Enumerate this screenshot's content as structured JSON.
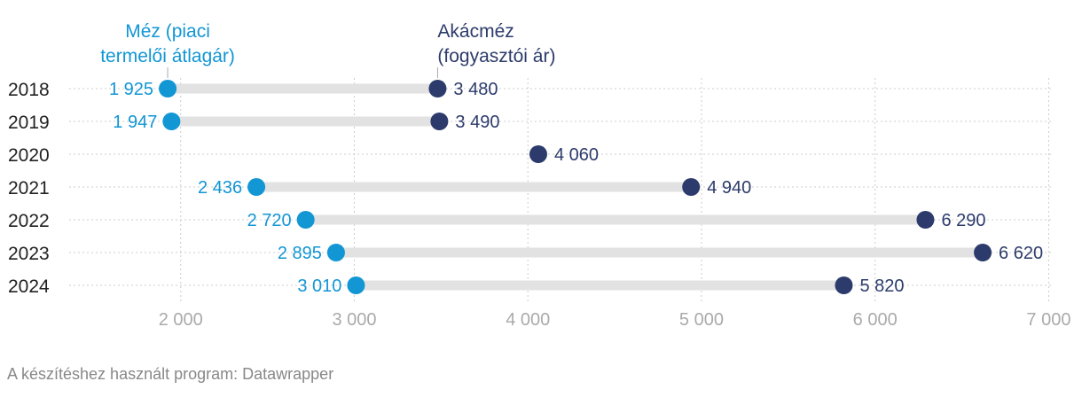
{
  "chart_data": {
    "type": "dumbbell",
    "series": [
      {
        "name": "Méz (piaci termelői átlagár)",
        "label_lines": [
          "Méz (piaci",
          "termelői átlagár)"
        ],
        "color": "#1296d4"
      },
      {
        "name": "Akácméz (fogyasztói ár)",
        "label_lines": [
          "Akácméz",
          "(fogyasztói ár)"
        ],
        "color": "#2c3b6b"
      }
    ],
    "rows": [
      {
        "year": "2018",
        "low": 1925,
        "low_label": "1 925",
        "high": 3480,
        "high_label": "3 480"
      },
      {
        "year": "2019",
        "low": 1947,
        "low_label": "1 947",
        "high": 3490,
        "high_label": "3 490"
      },
      {
        "year": "2020",
        "low": null,
        "low_label": "",
        "high": 4060,
        "high_label": "4 060"
      },
      {
        "year": "2021",
        "low": 2436,
        "low_label": "2 436",
        "high": 4940,
        "high_label": "4 940"
      },
      {
        "year": "2022",
        "low": 2720,
        "low_label": "2 720",
        "high": 6290,
        "high_label": "6 290"
      },
      {
        "year": "2023",
        "low": 2895,
        "low_label": "2 895",
        "high": 6620,
        "high_label": "6 620"
      },
      {
        "year": "2024",
        "low": 3010,
        "low_label": "3 010",
        "high": 5820,
        "high_label": "5 820"
      }
    ],
    "x_ticks": [
      2000,
      3000,
      4000,
      5000,
      6000,
      7000
    ],
    "x_tick_labels": [
      "2 000",
      "3 000",
      "4 000",
      "5 000",
      "6 000",
      "7 000"
    ],
    "xlim": [
      1470,
      7100
    ],
    "grid": true,
    "track_color": "#e2e2e2",
    "grid_color": "#cccccc",
    "tick_label_color": "#aaaaaa",
    "year_label_color": "#222222"
  },
  "footer": "A készítéshez használt program: Datawrapper"
}
